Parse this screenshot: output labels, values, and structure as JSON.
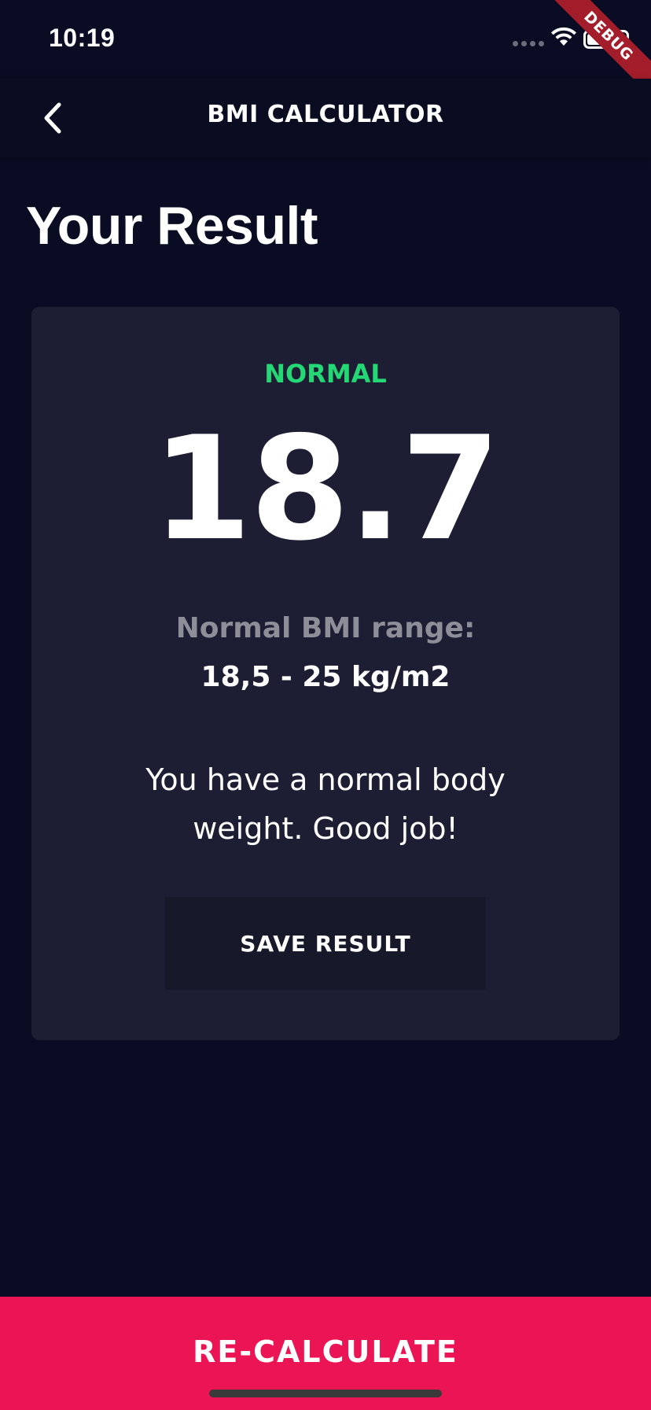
{
  "status_bar": {
    "time": "10:19"
  },
  "debug_banner": {
    "label": "DEBUG",
    "color": "#a31d2a"
  },
  "app_bar": {
    "title": "BMI CALCULATOR",
    "back_icon": "chevron-left-icon"
  },
  "page": {
    "title": "Your Result"
  },
  "result": {
    "status": "NORMAL",
    "bmi": "18.7",
    "range_label": "Normal BMI range:",
    "range_value": "18,5 - 25 kg/m2",
    "interpretation": "You have a normal body weight. Good job!",
    "save_label": "SAVE RESULT"
  },
  "footer": {
    "recalculate_label": "RE-CALCULATE"
  },
  "colors": {
    "background": "#090c22",
    "card": "#1d1e33",
    "status_green": "#24d876",
    "accent": "#eb1555"
  }
}
